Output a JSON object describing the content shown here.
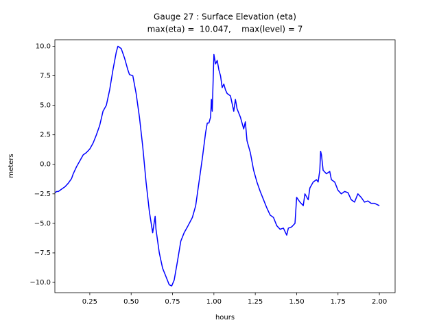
{
  "chart_data": {
    "type": "line",
    "title": "Gauge 27 : Surface Elevation (eta)",
    "subtitle": "max(eta) =  10.047,    max(level) = 7",
    "xlabel": "hours",
    "ylabel": "meters",
    "xlim": [
      0.039,
      2.095
    ],
    "ylim": [
      -10.87,
      10.55
    ],
    "xticks": [
      0.25,
      {
        "value": 0.5,
        "label": "0.50"
      },
      0.75,
      {
        "value": 1.0,
        "label": "1.00"
      },
      1.25,
      {
        "value": 1.5,
        "label": "1.50"
      },
      1.75,
      {
        "value": 2.0,
        "label": "2.00"
      }
    ],
    "yticks": [
      {
        "value": -10,
        "label": "−10.0"
      },
      {
        "value": -7.5,
        "label": "−7.5"
      },
      {
        "value": -5,
        "label": "−5.0"
      },
      {
        "value": -2.5,
        "label": "−2.5"
      },
      {
        "value": 0,
        "label": "0.0"
      },
      {
        "value": 2.5,
        "label": "2.5"
      },
      {
        "value": 5,
        "label": "5.0"
      },
      {
        "value": 7.5,
        "label": "7.5"
      },
      {
        "value": 10,
        "label": "10.0"
      }
    ],
    "x": [
      0.04,
      0.05,
      0.06,
      0.08,
      0.1,
      0.12,
      0.14,
      0.15,
      0.17,
      0.19,
      0.21,
      0.23,
      0.25,
      0.27,
      0.29,
      0.31,
      0.33,
      0.35,
      0.37,
      0.39,
      0.41,
      0.42,
      0.44,
      0.46,
      0.48,
      0.49,
      0.51,
      0.53,
      0.55,
      0.57,
      0.59,
      0.61,
      0.63,
      0.645,
      0.65,
      0.67,
      0.69,
      0.71,
      0.73,
      0.745,
      0.76,
      0.78,
      0.8,
      0.82,
      0.84,
      0.87,
      0.89,
      0.91,
      0.93,
      0.95,
      0.96,
      0.97,
      0.98,
      0.985,
      0.99,
      1.0,
      1.01,
      1.02,
      1.03,
      1.04,
      1.05,
      1.06,
      1.07,
      1.08,
      1.1,
      1.12,
      1.13,
      1.14,
      1.16,
      1.18,
      1.19,
      1.2,
      1.22,
      1.24,
      1.26,
      1.28,
      1.3,
      1.32,
      1.34,
      1.36,
      1.38,
      1.4,
      1.42,
      1.44,
      1.45,
      1.47,
      1.49,
      1.5,
      1.52,
      1.54,
      1.55,
      1.57,
      1.58,
      1.6,
      1.62,
      1.63,
      1.64,
      1.645,
      1.65,
      1.66,
      1.68,
      1.7,
      1.71,
      1.73,
      1.75,
      1.77,
      1.79,
      1.81,
      1.83,
      1.85,
      1.87,
      1.89,
      1.91,
      1.93,
      1.95,
      1.97,
      2.0
    ],
    "series": [
      {
        "name": "eta",
        "color": "#0000ff",
        "values": [
          -2.4,
          -2.3,
          -2.3,
          -2.1,
          -1.9,
          -1.6,
          -1.2,
          -0.8,
          -0.2,
          0.3,
          0.8,
          1.0,
          1.3,
          1.8,
          2.5,
          3.3,
          4.5,
          5.0,
          6.3,
          8.0,
          9.5,
          10.0,
          9.8,
          9.0,
          8.0,
          7.6,
          7.5,
          6.0,
          4.0,
          1.5,
          -1.5,
          -4.0,
          -5.8,
          -4.4,
          -5.5,
          -7.5,
          -8.8,
          -9.5,
          -10.2,
          -10.3,
          -9.8,
          -8.2,
          -6.5,
          -5.8,
          -5.3,
          -4.5,
          -3.5,
          -1.5,
          0.5,
          2.7,
          3.5,
          3.5,
          4.0,
          5.5,
          4.5,
          9.3,
          8.5,
          8.8,
          8.0,
          7.5,
          6.5,
          6.8,
          6.3,
          6.0,
          5.8,
          4.5,
          5.5,
          4.7,
          4.0,
          3.0,
          3.6,
          2.0,
          1.0,
          -0.5,
          -1.5,
          -2.3,
          -3.0,
          -3.7,
          -4.3,
          -4.5,
          -5.2,
          -5.5,
          -5.4,
          -6.0,
          -5.4,
          -5.3,
          -5.0,
          -2.8,
          -3.2,
          -3.5,
          -2.5,
          -3.0,
          -2.0,
          -1.5,
          -1.3,
          -1.5,
          -0.5,
          1.1,
          0.8,
          -0.5,
          -0.8,
          -0.6,
          -1.3,
          -1.5,
          -2.2,
          -2.5,
          -2.3,
          -2.4,
          -3.0,
          -3.2,
          -2.5,
          -2.8,
          -3.2,
          -3.1,
          -3.3,
          -3.3,
          -3.5
        ]
      }
    ]
  }
}
